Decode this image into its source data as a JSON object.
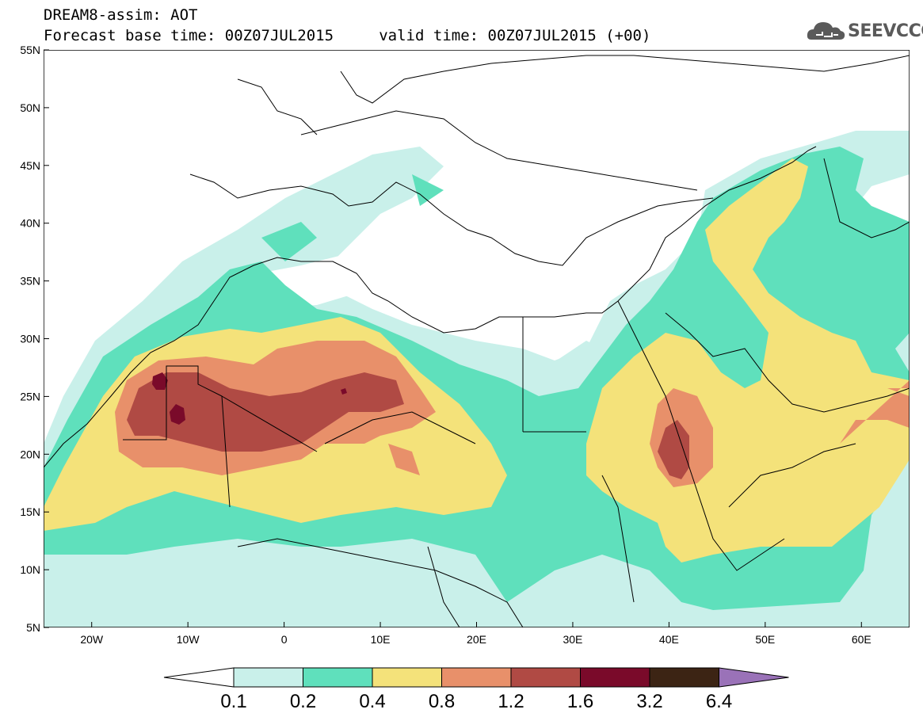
{
  "title": {
    "line1": "DREAM8-assim: AOT",
    "line2": "Forecast base time: 00Z07JUL2015     valid time: 00Z07JUL2015 (+00)"
  },
  "logo": {
    "text": "SEEVCCC",
    "icon": "cloud-icon"
  },
  "map": {
    "lon_range": [
      -25,
      65
    ],
    "lat_range": [
      5,
      55
    ],
    "lat_ticks": [
      "5N",
      "10N",
      "15N",
      "20N",
      "25N",
      "30N",
      "35N",
      "40N",
      "45N",
      "50N",
      "55N"
    ],
    "lon_ticks": [
      "20W",
      "10W",
      "0",
      "10E",
      "20E",
      "30E",
      "40E",
      "50E",
      "60E"
    ]
  },
  "colorbar": {
    "labels": [
      "0.1",
      "0.2",
      "0.4",
      "0.8",
      "1.2",
      "1.6",
      "3.2",
      "6.4"
    ],
    "colors": [
      "#ffffff",
      "#c9f0ea",
      "#5fe0bc",
      "#f4e27a",
      "#e8906a",
      "#b04a44",
      "#7a0a2a",
      "#3c2414",
      "#9a72b8"
    ]
  }
}
